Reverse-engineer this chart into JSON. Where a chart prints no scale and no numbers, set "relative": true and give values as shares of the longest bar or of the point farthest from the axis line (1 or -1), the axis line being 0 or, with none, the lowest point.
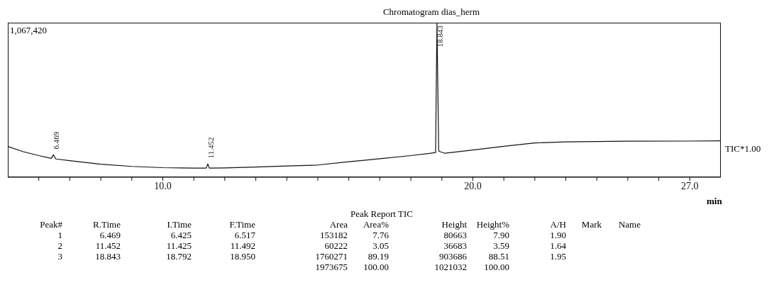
{
  "chart_data": [
    {
      "type": "line",
      "title": "Chromatogram dias_herm",
      "xlabel": "min",
      "relative": true,
      "xlim": [
        5,
        28
      ],
      "xticks": [
        {
          "value": 6,
          "label": null
        },
        {
          "value": 7,
          "label": null
        },
        {
          "value": 8,
          "label": null
        },
        {
          "value": 9,
          "label": null
        },
        {
          "value": 10,
          "label": "10.0"
        },
        {
          "value": 11,
          "label": null
        },
        {
          "value": 12,
          "label": null
        },
        {
          "value": 13,
          "label": null
        },
        {
          "value": 14,
          "label": null
        },
        {
          "value": 15,
          "label": null
        },
        {
          "value": 16,
          "label": null
        },
        {
          "value": 17,
          "label": null
        },
        {
          "value": 18,
          "label": null
        },
        {
          "value": 19,
          "label": null
        },
        {
          "value": 20,
          "label": "20.0"
        },
        {
          "value": 21,
          "label": null
        },
        {
          "value": 22,
          "label": null
        },
        {
          "value": 23,
          "label": null
        },
        {
          "value": 24,
          "label": null
        },
        {
          "value": 25,
          "label": null
        },
        {
          "value": 26,
          "label": null
        },
        {
          "value": 27,
          "label": "27.0"
        }
      ],
      "x": [
        5.0,
        5.5,
        6.0,
        6.4,
        6.469,
        6.55,
        7.0,
        8.0,
        9.0,
        10.0,
        11.0,
        11.4,
        11.452,
        11.5,
        12.0,
        13.0,
        14.0,
        15.0,
        16.0,
        17.0,
        18.0,
        18.6,
        18.8,
        18.843,
        18.9,
        18.95,
        19.1,
        20.0,
        21.0,
        22.0,
        23.0,
        25.0,
        27.0,
        28.0
      ],
      "series": [
        {
          "color": "#111111",
          "values": [
            0.199,
            0.165,
            0.14,
            0.122,
            0.145,
            0.118,
            0.107,
            0.084,
            0.07,
            0.062,
            0.059,
            0.059,
            0.086,
            0.059,
            0.06,
            0.066,
            0.073,
            0.079,
            0.1,
            0.12,
            0.14,
            0.154,
            0.16,
            1,
            0.17,
            0.165,
            0.155,
            0.176,
            0.2,
            0.222,
            0.229,
            0.233,
            0.234,
            0.236
          ]
        }
      ],
      "marker": "none",
      "line_style": "solid",
      "annotations": [
        "1,067,420",
        "TIC*1.00",
        {
          "text": "6.469",
          "x": 6.469,
          "y": 0.145
        },
        {
          "text": "11.452",
          "x": 11.452,
          "y": 0.086
        },
        {
          "text": "18.843",
          "x": 18.843,
          "y": 1
        }
      ]
    },
    {
      "type": "other",
      "title": "Peak Report TIC",
      "categories": [
        "Peak#",
        "R.Time",
        "I.Time",
        "F.Time",
        "Area",
        "Area%",
        "Height",
        "Height%",
        "A/H",
        "Mark",
        "Name"
      ],
      "cell_labels": [
        [
          "1",
          "6.469",
          "6.425",
          "6.517",
          "153182",
          "7.76",
          "80663",
          "7.90",
          "1.90",
          null,
          null
        ],
        [
          "2",
          "11.452",
          "11.425",
          "11.492",
          "60222",
          "3.05",
          "36683",
          "3.59",
          "1.64",
          null,
          null
        ],
        [
          "3",
          "18.843",
          "18.792",
          "18.950",
          "1760271",
          "89.19",
          "903686",
          "88.51",
          "1.95",
          null,
          null
        ],
        [
          null,
          null,
          null,
          null,
          "1973675",
          "100.00",
          "1021032",
          "100.00",
          null,
          null,
          null
        ]
      ]
    }
  ]
}
